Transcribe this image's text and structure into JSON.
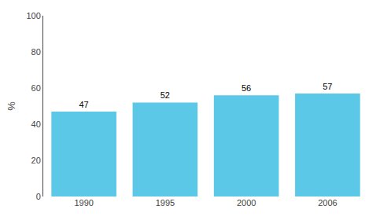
{
  "chart_data": {
    "type": "bar",
    "categories": [
      "1990",
      "1995",
      "2000",
      "2006"
    ],
    "values": [
      47,
      52,
      56,
      57
    ],
    "color": "#5BC8E8",
    "ylabel": "%",
    "ylim": [
      0,
      100
    ],
    "yticks": [
      0,
      20,
      40,
      60,
      80,
      100
    ],
    "data_labels": true,
    "grid": false
  }
}
